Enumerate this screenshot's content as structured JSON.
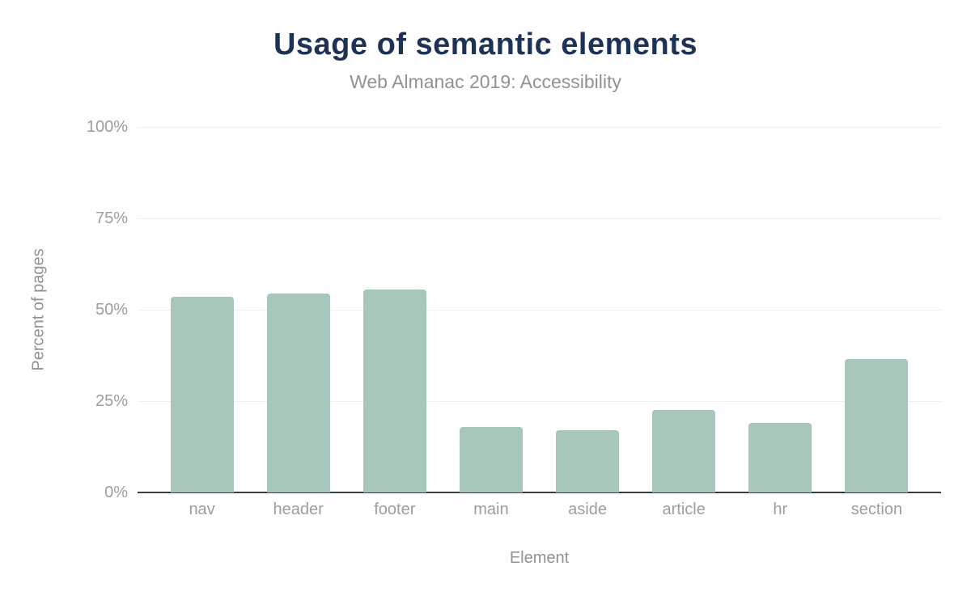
{
  "chart_data": {
    "type": "bar",
    "title": "Usage of semantic elements",
    "subtitle": "Web Almanac 2019: Accessibility",
    "xlabel": "Element",
    "ylabel": "Percent of pages",
    "categories": [
      "nav",
      "header",
      "footer",
      "main",
      "aside",
      "article",
      "hr",
      "section"
    ],
    "values": [
      53.5,
      54.5,
      55.5,
      18,
      17,
      22.5,
      19,
      36.5
    ],
    "ylim": [
      0,
      100
    ],
    "y_ticks": [
      "0%",
      "25%",
      "50%",
      "75%",
      "100%"
    ],
    "y_tick_values": [
      0,
      25,
      50,
      75,
      100
    ],
    "grid": "horizontal",
    "legend": "none",
    "colors": {
      "bar_fill": "#a7c8b8",
      "title": "#1e3257",
      "subtitle": "#8f9296",
      "tick_label": "#9a9ea3",
      "axis_title": "#8f9296",
      "axis_line": "#3d3d3d",
      "gridline": "#efefef",
      "background": "#ffffff"
    }
  }
}
